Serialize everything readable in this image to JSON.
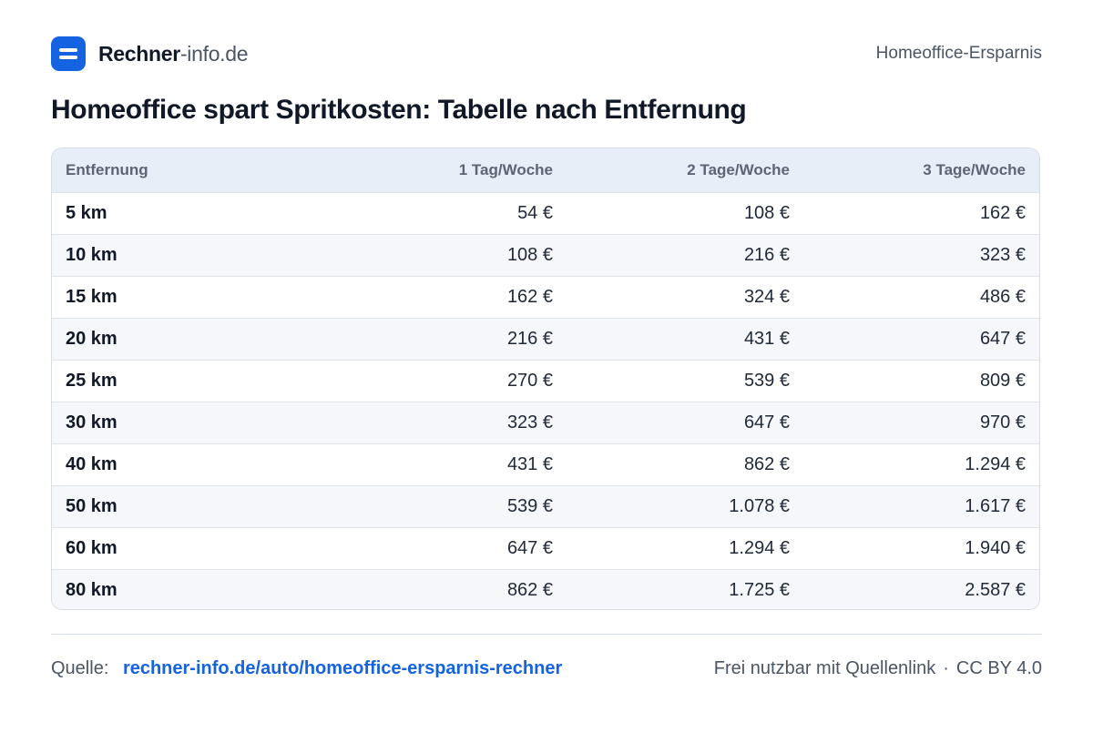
{
  "header": {
    "brand_name": "Rechner",
    "brand_domain": "-info.de",
    "right_label": "Homeoffice-Ersparnis"
  },
  "page": {
    "title": "Homeoffice spart Spritkosten: Tabelle nach Entfernung"
  },
  "table": {
    "headers": [
      "Entfernung",
      "1 Tag/Woche",
      "2 Tage/Woche",
      "3 Tage/Woche"
    ],
    "rows": [
      [
        "5 km",
        "54 €",
        "108 €",
        "162 €"
      ],
      [
        "10 km",
        "108 €",
        "216 €",
        "323 €"
      ],
      [
        "15 km",
        "162 €",
        "324 €",
        "486 €"
      ],
      [
        "20 km",
        "216 €",
        "431 €",
        "647 €"
      ],
      [
        "25 km",
        "270 €",
        "539 €",
        "809 €"
      ],
      [
        "30 km",
        "323 €",
        "647 €",
        "970 €"
      ],
      [
        "40 km",
        "431 €",
        "862 €",
        "1.294 €"
      ],
      [
        "50 km",
        "539 €",
        "1.078 €",
        "1.617 €"
      ],
      [
        "60 km",
        "647 €",
        "1.294 €",
        "1.940 €"
      ],
      [
        "80 km",
        "862 €",
        "1.725 €",
        "2.587 €"
      ]
    ]
  },
  "footer": {
    "source_label": "Quelle:",
    "source_link": "rechner-info.de/auto/homeoffice-ersparnis-rechner",
    "license_text": "Frei nutzbar mit Quellenlink",
    "separator": "·",
    "license": "CC BY 4.0"
  },
  "colors": {
    "accent": "#1563e0",
    "header_bg": "#e8eef7",
    "row_alt_bg": "#f5f7fb"
  }
}
